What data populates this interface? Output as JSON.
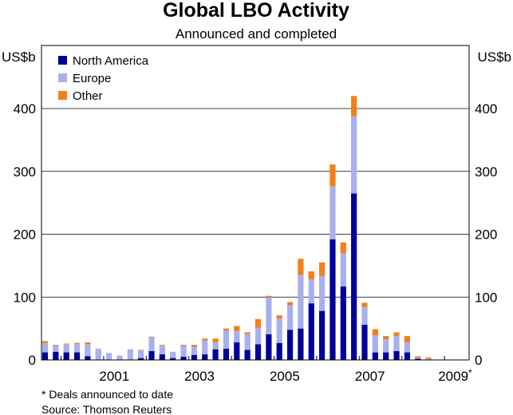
{
  "chart_data": {
    "type": "bar",
    "stacked": true,
    "title": "Global LBO Activity",
    "subtitle": "Announced and completed",
    "unit_left": "US$b",
    "unit_right": "US$b",
    "ylim": [
      0,
      400
    ],
    "y_ticks": [
      0,
      100,
      200,
      300,
      400
    ],
    "grid": true,
    "legend_position": "top-left",
    "x_tick_labels": [
      "2001",
      "2003",
      "2005",
      "2007",
      "2009*"
    ],
    "categories": [
      "Q3 1999",
      "Q4 1999",
      "Q1 2000",
      "Q2 2000",
      "Q3 2000",
      "Q4 2000",
      "Q1 2001",
      "Q2 2001",
      "Q3 2001",
      "Q4 2001",
      "Q1 2002",
      "Q2 2002",
      "Q3 2002",
      "Q4 2002",
      "Q1 2003",
      "Q2 2003",
      "Q3 2003",
      "Q4 2003",
      "Q1 2004",
      "Q2 2004",
      "Q3 2004",
      "Q4 2004",
      "Q1 2005",
      "Q2 2005",
      "Q3 2005",
      "Q4 2005",
      "Q1 2006",
      "Q2 2006",
      "Q3 2006",
      "Q4 2006",
      "Q1 2007",
      "Q2 2007",
      "Q3 2007",
      "Q4 2007",
      "Q1 2008",
      "Q2 2008",
      "Q3 2008",
      "Q4 2008",
      "Q1 2009",
      "Q2 2009"
    ],
    "series": [
      {
        "name": "North America",
        "color": "#00009a",
        "values": [
          12,
          13,
          12,
          12,
          6,
          0,
          0,
          0,
          0,
          3,
          14,
          9,
          3,
          5,
          8,
          9,
          17,
          18,
          28,
          16,
          25,
          41,
          27,
          48,
          50,
          90,
          78,
          192,
          117,
          265,
          56,
          12,
          12,
          14,
          12,
          2,
          0,
          0,
          0,
          0
        ]
      },
      {
        "name": "Europe",
        "color": "#a8b0ee",
        "values": [
          15,
          10,
          13,
          13,
          19,
          18,
          11,
          7,
          17,
          12,
          22,
          14,
          10,
          17,
          13,
          22,
          11,
          29,
          18,
          25,
          26,
          59,
          39,
          39,
          85,
          38,
          56,
          84,
          53,
          123,
          28,
          27,
          21,
          24,
          16,
          2,
          2,
          0,
          0,
          0
        ]
      },
      {
        "name": "Other",
        "color": "#f47f18",
        "values": [
          3,
          1,
          1,
          2,
          3,
          0,
          0,
          0,
          0,
          1,
          1,
          1,
          0,
          2,
          3,
          3,
          6,
          3,
          8,
          3,
          14,
          2,
          5,
          5,
          26,
          13,
          21,
          35,
          17,
          32,
          7,
          10,
          5,
          6,
          10,
          2,
          2,
          0,
          0,
          0
        ]
      }
    ]
  },
  "footnote": "*   Deals announced to date",
  "source": "Source: Thomson Reuters"
}
